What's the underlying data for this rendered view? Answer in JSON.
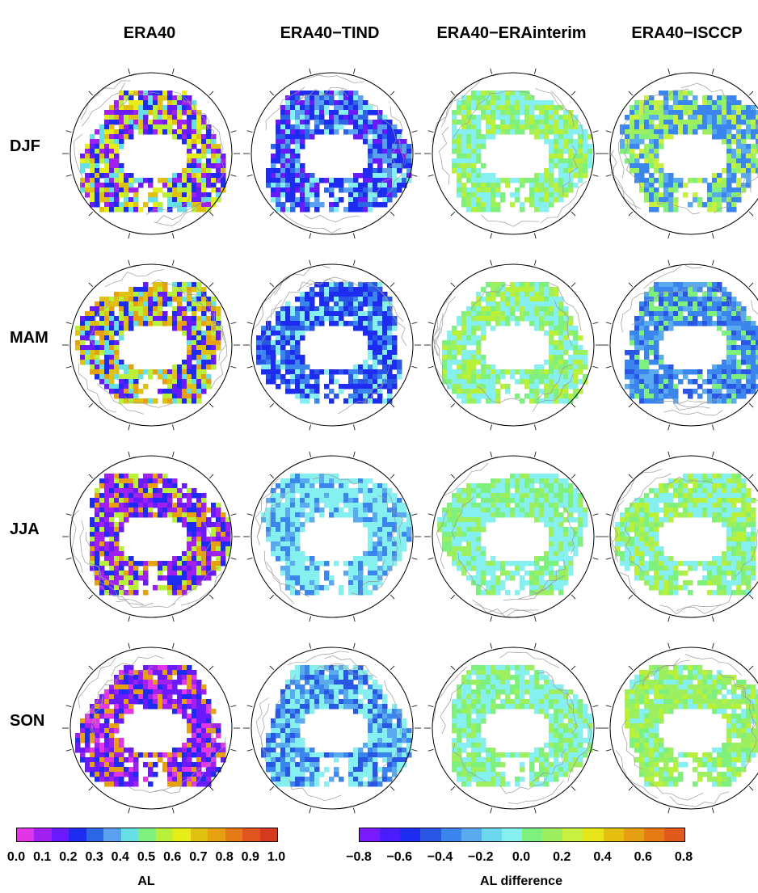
{
  "columns": [
    "ERA40",
    "ERA40−TIND",
    "ERA40−ERAinterim",
    "ERA40−ISCCP"
  ],
  "rows": [
    "DJF",
    "MAM",
    "JJA",
    "SON"
  ],
  "colorbar_left": {
    "label": "AL",
    "ticks": [
      "0.0",
      "0.1",
      "0.2",
      "0.3",
      "0.4",
      "0.5",
      "0.6",
      "0.7",
      "0.8",
      "0.9",
      "1.0"
    ],
    "colors": [
      "#e236e6",
      "#a020f0",
      "#6a1aff",
      "#1e2cf2",
      "#2a66e6",
      "#5aa0f0",
      "#66e0e6",
      "#7ef07e",
      "#b8f03a",
      "#e6ee18",
      "#e0c010",
      "#e6a010",
      "#e67a14",
      "#e0561e",
      "#d63a1c"
    ]
  },
  "colorbar_right": {
    "label": "AL difference",
    "ticks": [
      "−0.8",
      "−0.6",
      "−0.4",
      "−0.2",
      "0.0",
      "0.2",
      "0.4",
      "0.6",
      "0.8"
    ],
    "colors": [
      "#7a1aff",
      "#4a1cff",
      "#1e2cf2",
      "#2a56e6",
      "#3a86ee",
      "#5aaaf0",
      "#6cd8ee",
      "#86f0f0",
      "#7ef07e",
      "#9cf060",
      "#c8f040",
      "#e6e618",
      "#e6c010",
      "#e69e12",
      "#e67a14",
      "#e05a1c"
    ]
  },
  "panels": [
    {
      "id": "djf-era40",
      "mix": [
        "#6a1aff",
        "#1e2cf2",
        "#a020f0",
        "#e6ee18",
        "#b8f03a",
        "#66e0e6",
        "#e0c010"
      ]
    },
    {
      "id": "djf-tind",
      "mix": [
        "#1e2cf2",
        "#2a66e6",
        "#6a1aff",
        "#86f0f0",
        "#1e2cf2",
        "#5aa0f0"
      ]
    },
    {
      "id": "djf-erai",
      "mix": [
        "#9cf060",
        "#86f0f0",
        "#7ef07e",
        "#b8f03a",
        "#86f0f0"
      ]
    },
    {
      "id": "djf-isccp",
      "mix": [
        "#3a86ee",
        "#5aaaf0",
        "#9cf060",
        "#7ef07e",
        "#3a86ee",
        "#c8f040"
      ]
    },
    {
      "id": "mam-era40",
      "mix": [
        "#1e2cf2",
        "#e0c010",
        "#e6a010",
        "#6a1aff",
        "#b8f03a",
        "#66e0e6"
      ]
    },
    {
      "id": "mam-tind",
      "mix": [
        "#1e2cf2",
        "#2a56e6",
        "#86f0f0",
        "#3a86ee",
        "#1e2cf2"
      ]
    },
    {
      "id": "mam-erai",
      "mix": [
        "#86f0f0",
        "#9cf060",
        "#7ef07e",
        "#86f0f0",
        "#b8f03a"
      ]
    },
    {
      "id": "mam-isccp",
      "mix": [
        "#3a86ee",
        "#2a56e6",
        "#5aaaf0",
        "#7ef07e",
        "#3a86ee"
      ]
    },
    {
      "id": "jja-era40",
      "mix": [
        "#a020f0",
        "#6a1aff",
        "#1e2cf2",
        "#a020f0",
        "#e6a010",
        "#b8f03a"
      ]
    },
    {
      "id": "jja-tind",
      "mix": [
        "#86f0f0",
        "#86f0f0",
        "#5aaaf0",
        "#3a86ee",
        "#86f0f0"
      ]
    },
    {
      "id": "jja-erai",
      "mix": [
        "#86f0f0",
        "#9cf060",
        "#7ef07e",
        "#86f0f0"
      ]
    },
    {
      "id": "jja-isccp",
      "mix": [
        "#86f0f0",
        "#9cf060",
        "#86f0f0",
        "#7ef07e",
        "#b8f03a"
      ]
    },
    {
      "id": "son-era40",
      "mix": [
        "#a020f0",
        "#6a1aff",
        "#1e2cf2",
        "#6a1aff",
        "#e6a010",
        "#e236e6"
      ]
    },
    {
      "id": "son-tind",
      "mix": [
        "#86f0f0",
        "#3a86ee",
        "#5aaaf0",
        "#86f0f0",
        "#2a56e6"
      ]
    },
    {
      "id": "son-erai",
      "mix": [
        "#86f0f0",
        "#9cf060",
        "#7ef07e",
        "#86f0f0"
      ]
    },
    {
      "id": "son-isccp",
      "mix": [
        "#9cf060",
        "#86f0f0",
        "#b8f03a",
        "#7ef07e",
        "#9cf060"
      ]
    }
  ]
}
